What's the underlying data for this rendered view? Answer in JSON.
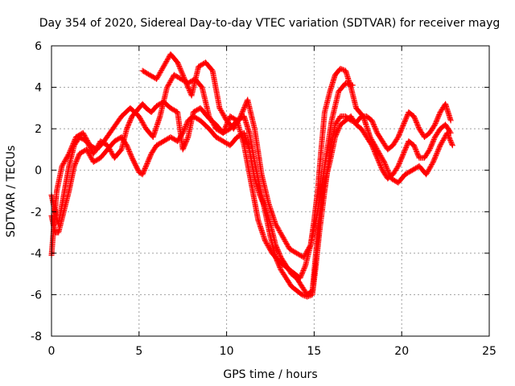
{
  "chart_data": {
    "type": "scatter",
    "title": "Day 354 of 2020, Sidereal Day-to-day VTEC variation (SDTVAR) for receiver mayg",
    "xlabel": "GPS time / hours",
    "ylabel": "SDTVAR / TECUs",
    "xlim": [
      0,
      25
    ],
    "ylim": [
      -8,
      6
    ],
    "xticks": [
      0,
      5,
      10,
      15,
      20,
      25
    ],
    "yticks": [
      -8,
      -6,
      -4,
      -2,
      0,
      2,
      4,
      6
    ],
    "grid": true,
    "legend": "none",
    "marker": "plus",
    "color": "#ff0000",
    "series": [
      {
        "x": [
          0.0,
          0.2,
          0.4,
          0.7,
          1.0,
          1.3,
          1.6,
          2.0,
          2.4,
          2.8,
          3.2,
          3.6,
          4.0,
          4.3,
          4.6,
          5.0,
          5.2,
          5.4,
          5.7,
          6.0,
          6.4,
          6.8,
          7.2,
          7.5,
          7.8,
          8.1,
          8.5,
          9.0,
          9.4,
          9.8,
          10.2,
          10.6,
          11.0,
          11.3,
          11.6,
          11.9,
          12.2,
          12.5,
          12.8,
          13.1,
          13.4,
          13.7,
          14.0,
          14.3,
          14.6,
          14.9,
          15.1,
          15.3,
          15.6,
          15.9,
          16.2,
          16.5,
          16.8,
          17.1,
          17.4,
          17.7,
          18.0,
          18.3,
          18.6,
          18.9,
          19.2,
          19.5,
          19.8,
          20.1,
          20.4,
          20.7,
          21.0,
          21.3,
          21.6,
          21.9,
          22.2,
          22.5,
          22.8
        ],
        "y": [
          -1.2,
          -2.0,
          -2.6,
          -1.2,
          0.2,
          1.2,
          1.6,
          1.4,
          0.8,
          1.4,
          1.2,
          0.6,
          1.0,
          2.0,
          2.6,
          3.0,
          3.2,
          3.0,
          2.8,
          3.1,
          3.3,
          3.0,
          2.8,
          1.0,
          1.6,
          2.8,
          3.0,
          2.5,
          2.2,
          1.8,
          2.0,
          2.4,
          2.6,
          1.8,
          0.4,
          -0.8,
          -2.0,
          -3.2,
          -4.2,
          -4.8,
          -5.2,
          -5.6,
          -5.8,
          -6.0,
          -6.1,
          -6.0,
          -4.6,
          -3.0,
          -1.0,
          0.8,
          2.2,
          2.6,
          2.6,
          2.4,
          2.3,
          2.6,
          2.6,
          2.4,
          1.8,
          1.4,
          1.0,
          1.2,
          1.6,
          2.2,
          2.8,
          2.6,
          2.0,
          1.6,
          1.8,
          2.2,
          2.8,
          3.2,
          2.4
        ]
      },
      {
        "x": [
          0.0,
          0.2,
          0.4,
          0.7,
          1.0,
          1.3,
          1.6,
          2.0,
          2.4,
          2.8,
          3.2,
          3.6,
          4.0,
          4.3,
          4.6,
          5.0,
          5.2,
          5.4,
          5.7,
          6.0,
          6.4,
          6.8,
          7.2,
          7.5,
          7.8,
          8.1,
          8.5,
          9.0,
          9.4,
          9.8,
          10.2,
          10.6,
          11.0,
          11.3,
          11.6,
          11.9,
          12.2,
          12.5,
          12.8,
          13.1,
          13.4,
          13.7,
          14.0,
          14.3,
          14.6,
          14.9,
          15.1,
          15.3,
          15.6,
          15.9,
          16.2,
          16.5,
          16.8,
          17.1,
          17.4,
          17.7,
          18.0,
          18.3,
          18.6,
          18.9,
          19.2,
          19.5,
          19.8,
          20.1,
          20.4,
          20.7,
          21.0,
          21.3,
          21.6,
          21.9,
          22.2,
          22.5,
          22.8
        ],
        "y": [
          -2.2,
          -3.0,
          -3.0,
          -2.0,
          -1.0,
          0.2,
          0.8,
          1.0,
          0.4,
          0.6,
          1.0,
          1.4,
          1.6,
          1.2,
          0.6,
          -0.1,
          -0.2,
          0.2,
          0.8,
          1.2,
          1.4,
          1.6,
          1.4,
          1.8,
          2.4,
          2.6,
          2.4,
          2.0,
          1.6,
          1.4,
          1.2,
          1.6,
          1.8,
          1.0,
          -0.4,
          -1.2,
          -1.8,
          -2.6,
          -3.6,
          -4.2,
          -4.6,
          -5.0,
          -5.2,
          -5.6,
          -6.0,
          -5.8,
          -4.0,
          -2.2,
          -0.6,
          0.4,
          1.6,
          2.2,
          2.4,
          2.6,
          2.2,
          2.0,
          1.6,
          1.2,
          0.6,
          0.0,
          -0.4,
          -0.2,
          0.2,
          0.8,
          1.4,
          1.2,
          0.6,
          0.6,
          1.0,
          1.6,
          2.0,
          2.2,
          1.8
        ]
      },
      {
        "x": [
          0.0,
          0.3,
          0.6,
          1.0,
          1.4,
          1.8,
          2.2,
          2.6,
          3.0,
          3.5,
          4.0,
          4.5,
          5.0,
          5.4,
          5.8,
          6.2,
          6.6,
          7.0,
          7.4,
          7.8,
          8.2,
          8.6,
          9.0,
          9.4,
          9.8,
          10.2,
          10.6,
          11.0,
          11.4,
          11.8,
          12.2,
          12.6,
          13.0,
          13.3,
          13.6,
          13.9,
          14.2,
          14.5,
          14.8,
          15.0,
          15.2,
          15.4,
          15.6,
          15.9,
          16.2,
          16.5,
          16.8,
          17.1,
          17.4,
          17.8,
          18.2,
          18.6,
          19.0,
          19.4,
          19.8,
          20.2,
          20.6,
          21.0,
          21.4,
          21.8,
          22.2,
          22.6,
          22.9
        ],
        "y": [
          -4.1,
          -1.0,
          0.2,
          0.8,
          1.6,
          1.8,
          1.2,
          1.0,
          1.4,
          2.0,
          2.6,
          3.0,
          2.6,
          2.0,
          1.6,
          2.6,
          4.0,
          4.6,
          4.4,
          4.2,
          4.4,
          4.0,
          2.6,
          2.0,
          1.8,
          2.6,
          2.4,
          1.2,
          -0.6,
          -2.4,
          -3.4,
          -4.0,
          -4.4,
          -4.6,
          -4.8,
          -5.0,
          -5.2,
          -4.6,
          -3.6,
          -2.4,
          -1.0,
          1.0,
          2.8,
          3.8,
          4.6,
          4.9,
          4.8,
          4.0,
          3.0,
          2.6,
          1.6,
          1.0,
          0.4,
          -0.4,
          -0.6,
          -0.2,
          0.0,
          0.2,
          -0.2,
          0.4,
          1.2,
          1.8,
          1.2
        ]
      },
      {
        "x": [
          5.2,
          5.6,
          6.0,
          6.4,
          6.8,
          7.2,
          7.6,
          8.0,
          8.4,
          8.8,
          9.2,
          9.6,
          10.0,
          10.4,
          10.8,
          11.2,
          11.6,
          12.0,
          12.4,
          12.8,
          13.2,
          13.6,
          14.0,
          14.4,
          14.8,
          15.2,
          15.6,
          16.0,
          16.4,
          16.8,
          17.2
        ],
        "y": [
          4.8,
          4.6,
          4.4,
          5.0,
          5.6,
          5.2,
          4.4,
          3.6,
          5.0,
          5.2,
          4.8,
          3.0,
          2.4,
          2.0,
          2.6,
          3.4,
          2.0,
          -0.2,
          -1.6,
          -2.6,
          -3.2,
          -3.8,
          -4.0,
          -4.2,
          -3.6,
          -2.0,
          0.2,
          2.4,
          3.8,
          4.2,
          4.1
        ]
      }
    ]
  }
}
